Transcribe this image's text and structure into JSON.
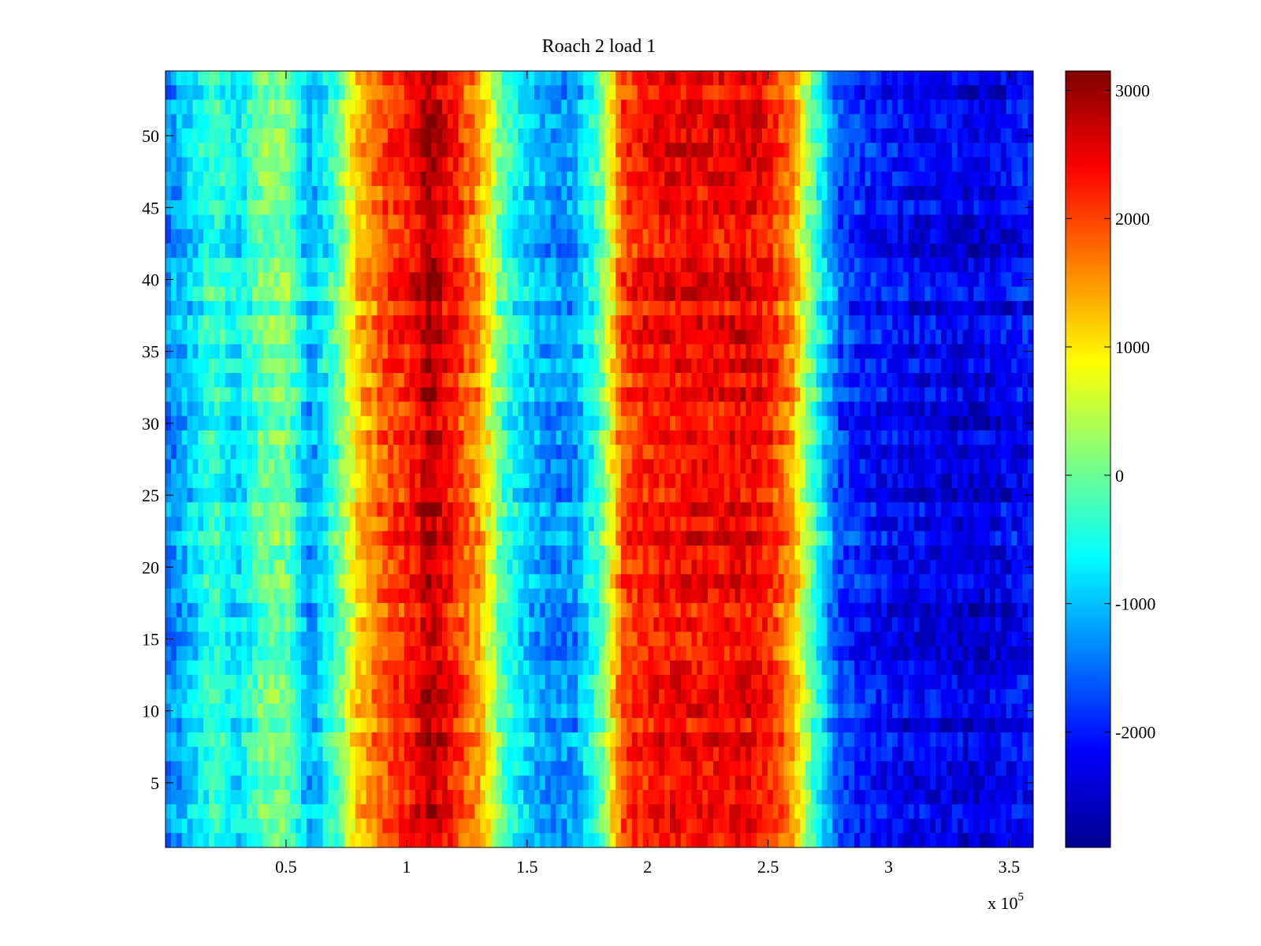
{
  "chart_data": {
    "type": "heatmap",
    "title": "Roach 2 load 1",
    "xlabel": "",
    "ylabel": "",
    "x_exponent_label": {
      "base": "x 10",
      "exponent": "5"
    },
    "xlim": [
      0,
      3.6
    ],
    "ylim": [
      0.5,
      54.5
    ],
    "x_ticks": [
      0.5,
      1,
      1.5,
      2,
      2.5,
      3,
      3.5
    ],
    "x_tick_labels": [
      "0.5",
      "1",
      "1.5",
      "2",
      "2.5",
      "3",
      "3.5"
    ],
    "y_ticks": [
      5,
      10,
      15,
      20,
      25,
      30,
      35,
      40,
      45,
      50
    ],
    "y_tick_labels": [
      "5",
      "10",
      "15",
      "20",
      "25",
      "30",
      "35",
      "40",
      "45",
      "50"
    ],
    "rows": 54,
    "colormap": "jet",
    "clim": [
      -2900,
      3150
    ],
    "colorbar_ticks": [
      3000,
      2000,
      1000,
      0,
      -1000,
      -2000
    ],
    "colorbar_tick_labels": [
      "3000",
      "2000",
      "1000",
      "0",
      "-1000",
      "-2000"
    ],
    "colorbar_position": "right",
    "column_profile": {
      "x": [
        0.0,
        0.1,
        0.2,
        0.3,
        0.4,
        0.5,
        0.6,
        0.7,
        0.8,
        0.9,
        1.0,
        1.1,
        1.2,
        1.3,
        1.4,
        1.5,
        1.6,
        1.7,
        1.8,
        1.9,
        2.0,
        2.1,
        2.2,
        2.3,
        2.4,
        2.5,
        2.6,
        2.7,
        2.8,
        2.9,
        3.0,
        3.1,
        3.2,
        3.3,
        3.4,
        3.5,
        3.6
      ],
      "values": [
        -1400,
        -900,
        -300,
        -800,
        0,
        100,
        -1200,
        -300,
        1200,
        1900,
        2200,
        2900,
        2200,
        1500,
        -200,
        -900,
        -1300,
        -1200,
        -200,
        2000,
        2300,
        2400,
        2400,
        2400,
        2500,
        2300,
        1500,
        -400,
        -1700,
        -2000,
        -2100,
        -2200,
        -2200,
        -2300,
        -2300,
        -2200,
        -2000
      ]
    }
  }
}
